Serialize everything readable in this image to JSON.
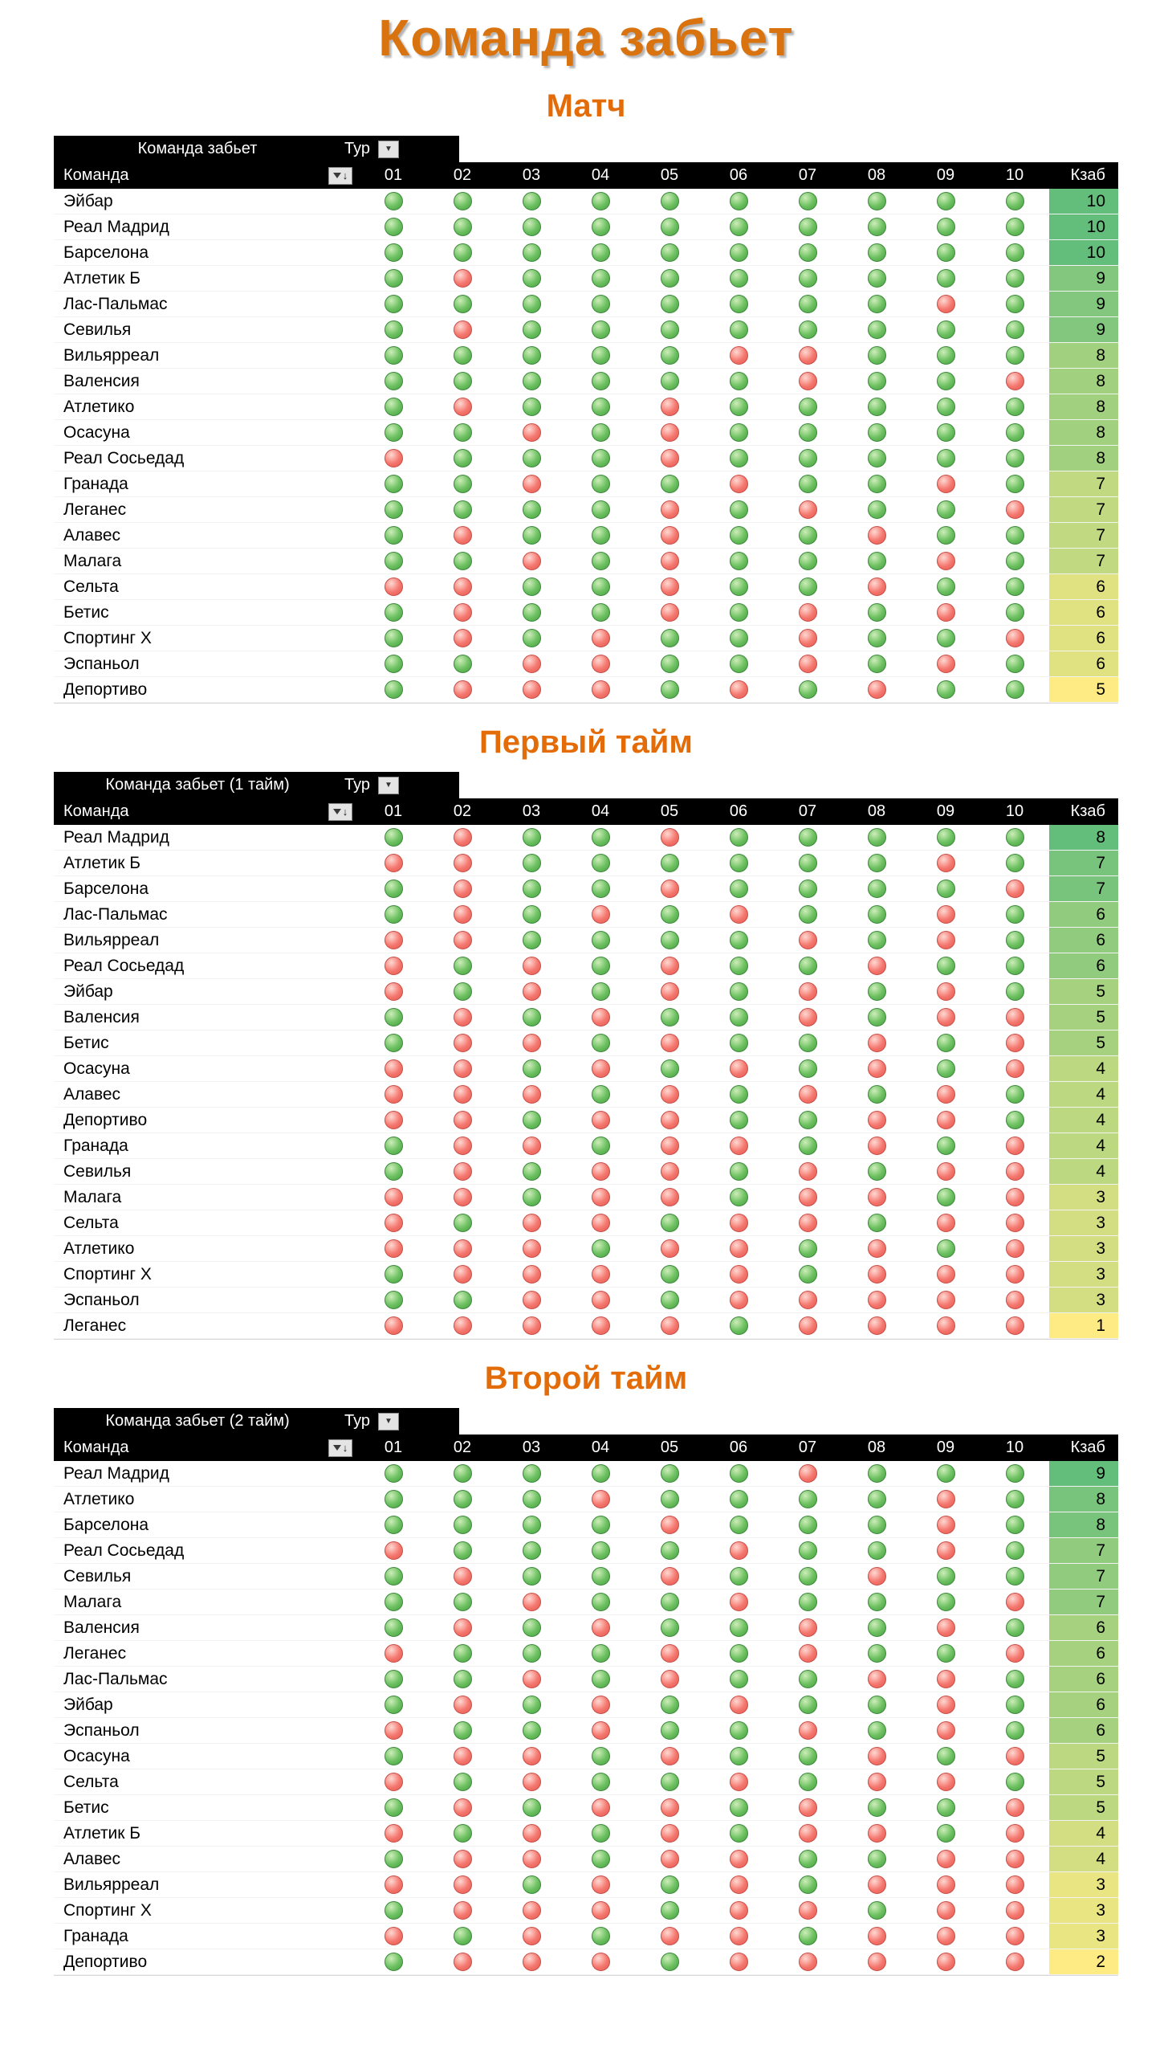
{
  "page_title": "Команда забьет",
  "colors": {
    "accent": "#E36C09",
    "header_bg": "#000000",
    "green_dot": "#5BB14F",
    "red_dot": "#F4726B",
    "scale_max_green": "#63BE7B",
    "scale_min_yellow": "#FFEB84"
  },
  "icons": {
    "dropdown_arrow": "▼",
    "sort_arrow": "↓"
  },
  "sections": [
    {
      "title": "Матч",
      "table_label": "Команда забьет",
      "filter_label": "Тур",
      "columns": {
        "team": "Команда",
        "rounds": [
          "01",
          "02",
          "03",
          "04",
          "05",
          "06",
          "07",
          "08",
          "09",
          "10"
        ],
        "total": "Кзаб"
      },
      "total_scale": {
        "10": "#63BE7B",
        "9": "#82C77D",
        "8": "#A1D07F",
        "7": "#C1D980",
        "6": "#E0E282",
        "5": "#FFEB84"
      },
      "rows": [
        {
          "team": "Эйбар",
          "dots": "gggggggggg",
          "total": 10
        },
        {
          "team": "Реал Мадрид",
          "dots": "gggggggggg",
          "total": 10
        },
        {
          "team": "Барселона",
          "dots": "gggggggggg",
          "total": 10
        },
        {
          "team": "Атлетик Б",
          "dots": "grgggggggg",
          "total": 9
        },
        {
          "team": "Лас-Пальмас",
          "dots": "ggggggggrg",
          "total": 9
        },
        {
          "team": "Севилья",
          "dots": "grgggggggg",
          "total": 9
        },
        {
          "team": "Вильярреал",
          "dots": "gggggrrggg",
          "total": 8
        },
        {
          "team": "Валенсия",
          "dots": "ggggggrggr",
          "total": 8
        },
        {
          "team": "Атлетико",
          "dots": "grggrggggg",
          "total": 8
        },
        {
          "team": "Осасуна",
          "dots": "ggrgrggggg",
          "total": 8
        },
        {
          "team": "Реал Сосьедад",
          "dots": "rgggrggggg",
          "total": 8
        },
        {
          "team": "Гранада",
          "dots": "ggrggrggrg",
          "total": 7
        },
        {
          "team": "Леганес",
          "dots": "ggggrgrggr",
          "total": 7
        },
        {
          "team": "Алавес",
          "dots": "grggrggrgg",
          "total": 7
        },
        {
          "team": "Малага",
          "dots": "ggrgrgggrg",
          "total": 7
        },
        {
          "team": "Сельта",
          "dots": "rrggrggrgg",
          "total": 6
        },
        {
          "team": "Бетис",
          "dots": "grggrgrgrg",
          "total": 6
        },
        {
          "team": "Спортинг Х",
          "dots": "grgrggrggr",
          "total": 6
        },
        {
          "team": "Эспаньол",
          "dots": "ggrrggrgrg",
          "total": 6
        },
        {
          "team": "Депортиво",
          "dots": "grrrgrgrgg",
          "total": 5
        }
      ]
    },
    {
      "title": "Первый тайм",
      "table_label": "Команда забьет (1 тайм)",
      "filter_label": "Тур",
      "columns": {
        "team": "Команда",
        "rounds": [
          "01",
          "02",
          "03",
          "04",
          "05",
          "06",
          "07",
          "08",
          "09",
          "10"
        ],
        "total": "Кзаб"
      },
      "total_scale": {
        "8": "#63BE7B",
        "7": "#79C47C",
        "6": "#90CB7E",
        "5": "#A6D17F",
        "4": "#BCD880",
        "3": "#D2DE81",
        "1": "#FFEB84"
      },
      "rows": [
        {
          "team": "Реал Мадрид",
          "dots": "grggrggggg",
          "total": 8
        },
        {
          "team": "Атлетик Б",
          "dots": "rrggggggrg",
          "total": 7
        },
        {
          "team": "Барселона",
          "dots": "grggrggggr",
          "total": 7
        },
        {
          "team": "Лас-Пальмас",
          "dots": "grgrgrggrg",
          "total": 6
        },
        {
          "team": "Вильярреал",
          "dots": "rrggggrgrg",
          "total": 6
        },
        {
          "team": "Реал Сосьедад",
          "dots": "rgrgrggrgg",
          "total": 6
        },
        {
          "team": "Эйбар",
          "dots": "rgrgrgrgrg",
          "total": 5
        },
        {
          "team": "Валенсия",
          "dots": "grgrggrgrr",
          "total": 5
        },
        {
          "team": "Бетис",
          "dots": "grrgrggrgr",
          "total": 5
        },
        {
          "team": "Осасуна",
          "dots": "rrgrgrgrgr",
          "total": 4
        },
        {
          "team": "Алавес",
          "dots": "rrrgrgrgrg",
          "total": 4
        },
        {
          "team": "Депортиво",
          "dots": "rrgrrggrrg",
          "total": 4
        },
        {
          "team": "Гранада",
          "dots": "grrgrrgrgr",
          "total": 4
        },
        {
          "team": "Севилья",
          "dots": "grgrrgrgrr",
          "total": 4
        },
        {
          "team": "Малага",
          "dots": "rrgrrgrrgr",
          "total": 3
        },
        {
          "team": "Сельта",
          "dots": "rgrrgrrgrr",
          "total": 3
        },
        {
          "team": "Атлетико",
          "dots": "rrrgrrgrgr",
          "total": 3
        },
        {
          "team": "Спортинг Х",
          "dots": "grrrgrgrrr",
          "total": 3
        },
        {
          "team": "Эспаньол",
          "dots": "ggrrgrrrrr",
          "total": 3
        },
        {
          "team": "Леганес",
          "dots": "rrrrrgrrrr",
          "total": 1
        }
      ]
    },
    {
      "title": "Второй тайм",
      "table_label": "Команда забьет (2 тайм)",
      "filter_label": "Тур",
      "columns": {
        "team": "Команда",
        "rounds": [
          "01",
          "02",
          "03",
          "04",
          "05",
          "06",
          "07",
          "08",
          "09",
          "10"
        ],
        "total": "Кзаб"
      },
      "total_scale": {
        "9": "#63BE7B",
        "8": "#79C47C",
        "7": "#90CB7E",
        "6": "#A6D17F",
        "5": "#BCD880",
        "4": "#D2DE81",
        "3": "#E9E583",
        "2": "#FFEB84"
      },
      "rows": [
        {
          "team": "Реал Мадрид",
          "dots": "ggggggrggg",
          "total": 9
        },
        {
          "team": "Атлетико",
          "dots": "gggrggggrg",
          "total": 8
        },
        {
          "team": "Барселона",
          "dots": "ggggrgggrg",
          "total": 8
        },
        {
          "team": "Реал Сосьедад",
          "dots": "rggggrggrg",
          "total": 7
        },
        {
          "team": "Севилья",
          "dots": "grggrggrgg",
          "total": 7
        },
        {
          "team": "Малага",
          "dots": "ggrggrgggr",
          "total": 7
        },
        {
          "team": "Валенсия",
          "dots": "grgrggrgrg",
          "total": 6
        },
        {
          "team": "Леганес",
          "dots": "rgggrgrggr",
          "total": 6
        },
        {
          "team": "Лас-Пальмас",
          "dots": "ggrgrggrrg",
          "total": 6
        },
        {
          "team": "Эйбар",
          "dots": "grgrgrggrg",
          "total": 6
        },
        {
          "team": "Эспаньол",
          "dots": "rggrggrgrg",
          "total": 6
        },
        {
          "team": "Осасуна",
          "dots": "grrgrggrgr",
          "total": 5
        },
        {
          "team": "Сельта",
          "dots": "rgrggrgrrg",
          "total": 5
        },
        {
          "team": "Бетис",
          "dots": "grgrrgrggr",
          "total": 5
        },
        {
          "team": "Атлетик Б",
          "dots": "rgrgrgrrgr",
          "total": 4
        },
        {
          "team": "Алавес",
          "dots": "grrgrrggrr",
          "total": 4
        },
        {
          "team": "Вильярреал",
          "dots": "rrgrgrgrrr",
          "total": 3
        },
        {
          "team": "Спортинг Х",
          "dots": "grrrgrrgrr",
          "total": 3
        },
        {
          "team": "Гранада",
          "dots": "rgrgrrgrrr",
          "total": 3
        },
        {
          "team": "Депортиво",
          "dots": "grrrgrrrrr",
          "total": 2
        }
      ]
    }
  ]
}
